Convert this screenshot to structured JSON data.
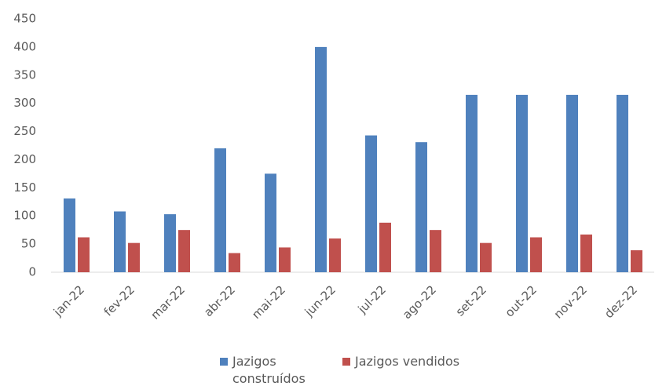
{
  "chart_data": {
    "type": "bar",
    "categories": [
      "jan-22",
      "fev-22",
      "mar-22",
      "abr-22",
      "mai-22",
      "jun-22",
      "jul-22",
      "ago-22",
      "set-22",
      "out-22",
      "nov-22",
      "dez-22"
    ],
    "series": [
      {
        "name": "Jazigos construídos",
        "color": "#4f81bd",
        "values": [
          131,
          108,
          103,
          220,
          175,
          400,
          243,
          231,
          315,
          315,
          315,
          315
        ]
      },
      {
        "name": "Jazigos vendidos",
        "color": "#c0504d",
        "values": [
          62,
          52,
          75,
          34,
          44,
          60,
          88,
          75,
          52,
          62,
          67,
          39
        ]
      }
    ],
    "ylim": [
      0,
      450
    ],
    "yticks": [
      0,
      50,
      100,
      150,
      200,
      250,
      300,
      350,
      400,
      450
    ],
    "grid": false,
    "legend": "bottom"
  }
}
